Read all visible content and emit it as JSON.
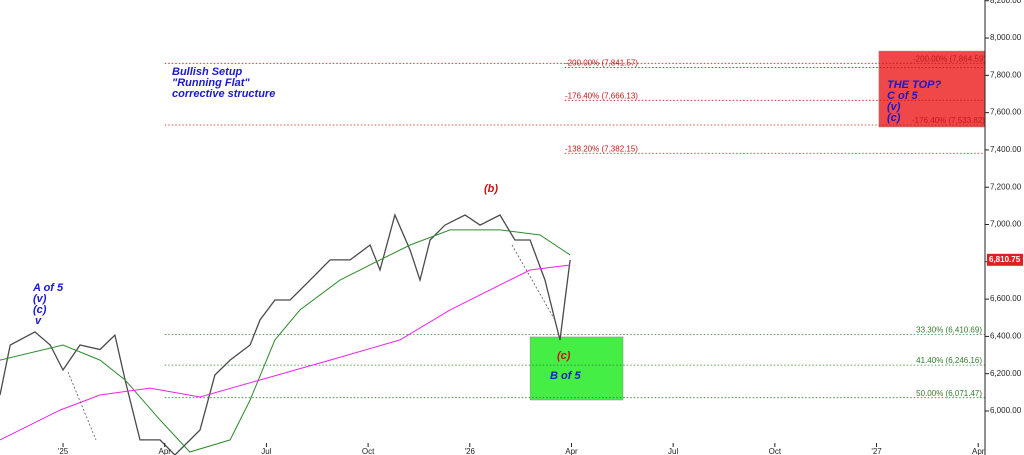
{
  "chart_data": {
    "type": "line",
    "xlim": [
      -1.86,
      27.2
    ],
    "ylim": [
      5764,
      8204
    ],
    "xticks": [
      {
        "value": 0,
        "label": "'25"
      },
      {
        "value": 3,
        "label": "Apr"
      },
      {
        "value": 6,
        "label": "Jul"
      },
      {
        "value": 9,
        "label": "Oct"
      },
      {
        "value": 12,
        "label": "'26"
      },
      {
        "value": 15,
        "label": "Apr"
      },
      {
        "value": 18,
        "label": "Jul"
      },
      {
        "value": 21,
        "label": "Oct"
      },
      {
        "value": 24,
        "label": "'27"
      },
      {
        "value": 27,
        "label": "Apr"
      }
    ],
    "yticks": [
      {
        "value": 6000,
        "label": "6,000.00"
      },
      {
        "value": 6200,
        "label": "6,200.00"
      },
      {
        "value": 6400,
        "label": "6,400.00"
      },
      {
        "value": 6600,
        "label": "6,600.00"
      },
      {
        "value": 6800,
        "label": "6,800.00"
      },
      {
        "value": 7000,
        "label": "7,000.00"
      },
      {
        "value": 7200,
        "label": "7,200.00"
      },
      {
        "value": 7400,
        "label": "7,400.00"
      },
      {
        "value": 7600,
        "label": "7,600.00"
      },
      {
        "value": 7800,
        "label": "7,800.00"
      },
      {
        "value": 8000,
        "label": "8,000.00"
      },
      {
        "value": 8200,
        "label": "8,200.00"
      }
    ],
    "series": [
      {
        "color": "#4a4a4a",
        "x": [
          -1.86,
          -1.56,
          -0.83,
          -0.38,
          0,
          0.5,
          1.09,
          1.53,
          1.83,
          2.27,
          2.86,
          3.3,
          4.04,
          4.48,
          4.93,
          5.52,
          5.81,
          6.25,
          6.7,
          7.29,
          7.88,
          8.47,
          9.06,
          9.35,
          9.79,
          10.24,
          10.53,
          10.83,
          11.27,
          11.86,
          12.3,
          12.89,
          13.33,
          13.78,
          14.22,
          14.51,
          14.66,
          14.81,
          14.96
        ],
        "values": [
          6086,
          6354,
          6424,
          6354,
          6220,
          6354,
          6330,
          6407,
          6166,
          5845,
          5845,
          5764,
          5898,
          6193,
          6273,
          6354,
          6488,
          6595,
          6595,
          6702,
          6810,
          6810,
          6890,
          6756,
          7051,
          6863,
          6702,
          6917,
          6997,
          7051,
          6997,
          7051,
          6917,
          6917,
          6702,
          6488,
          6381,
          6595,
          6810
        ]
      },
      {
        "color": "#2e8b2e",
        "x": [
          -1.86,
          0,
          1.09,
          1.83,
          2.86,
          3.74,
          4.93,
          5.52,
          6.25,
          6.99,
          8.17,
          9.35,
          10.24,
          11.42,
          12.89,
          14.07,
          14.96
        ],
        "values": [
          6273,
          6354,
          6273,
          6166,
          5952,
          5780,
          5845,
          6059,
          6381,
          6542,
          6702,
          6810,
          6890,
          6971,
          6971,
          6944,
          6837
        ]
      },
      {
        "color": "#ee22ee",
        "x": [
          -1.86,
          -0.09,
          1.09,
          2.57,
          4.04,
          5.81,
          7.88,
          9.94,
          11.42,
          12.89,
          13.78,
          14.96
        ],
        "values": [
          5845,
          6005,
          6086,
          6123,
          6075,
          6166,
          6273,
          6381,
          6542,
          6676,
          6756,
          6783
        ]
      }
    ],
    "levels": [
      {
        "label": "-200.00% (7,841.57)",
        "value": 7841.57,
        "color": "#c01818",
        "from": 14.8
      },
      {
        "label": "-176.40% (7,666.13)",
        "value": 7666.13,
        "color": "#c01818",
        "from": 14.8
      },
      {
        "label": "-138.20% (7,382.15)",
        "value": 7382.15,
        "color": "#c01818",
        "from": 14.8
      },
      {
        "label": "-200.00% (7,864.59)",
        "value": 7864.59,
        "color": "#c01818",
        "from": 3.0
      },
      {
        "label": "-176.40% (7,533.82)",
        "value": 7533.82,
        "color": "#c01818",
        "from": 3.0
      },
      {
        "label": "33.30% (6,410.69)",
        "value": 6410.69,
        "color": "#2e7d2e",
        "from": 3.0
      },
      {
        "label": "41.40% (6,246.16)",
        "value": 6246.16,
        "color": "#2e7d2e",
        "from": 3.0
      },
      {
        "label": "50.00% (6,071.47)",
        "value": 6071.47,
        "color": "#2e7d2e",
        "from": 3.0
      }
    ],
    "boxes": [
      {
        "x": [
          13.78,
          16.52
        ],
        "y": [
          6059,
          6397
        ],
        "color": "#44ee44",
        "lines": [
          "B of 5"
        ]
      },
      {
        "x": [
          24.07,
          27.2
        ],
        "y": [
          7523,
          7930
        ],
        "color": "#f04848",
        "lines": [
          "THE TOP?",
          "C of 5",
          "(v)",
          "(c)"
        ]
      }
    ],
    "last_price": {
      "value": 6810.75,
      "label": "6,810.75",
      "color": "#e02020"
    },
    "annotations": [
      "Bullish Setup",
      "\"Running Flat\"",
      "corrective structure",
      "A of 5",
      "(v)",
      "(c)",
      "v",
      "(b)",
      "(c)"
    ]
  }
}
